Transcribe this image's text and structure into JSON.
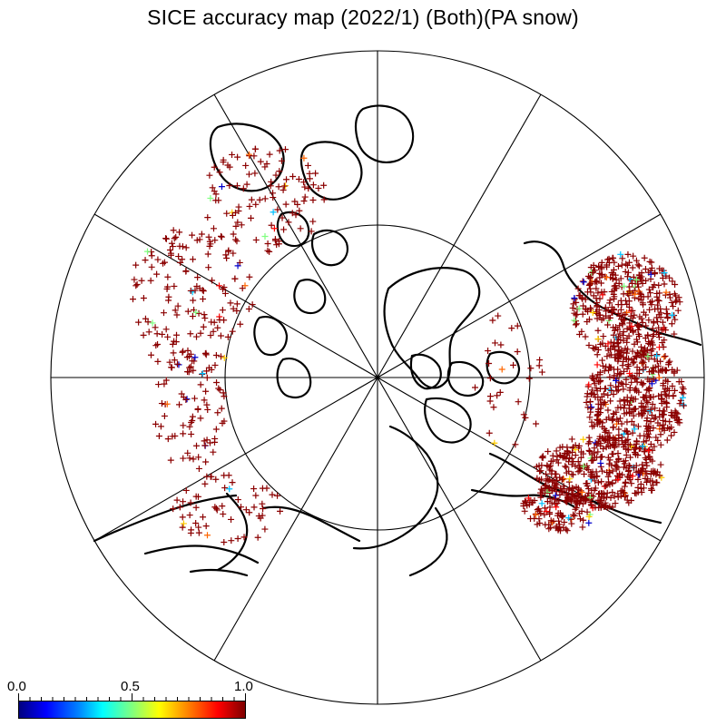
{
  "title": "SICE accuracy map (2022/1) (Both)(PA snow)",
  "colorbar": {
    "labels": [
      "0.0",
      "0.5",
      "1.0"
    ],
    "min": 0.0,
    "max": 1.0,
    "colors": [
      "#00007f",
      "#0000ff",
      "#00ffff",
      "#ffff00",
      "#ff0000",
      "#7f0000"
    ]
  },
  "legend_icons": {
    "marker": "plus-marker"
  },
  "map": {
    "projection": "north-polar-stereographic",
    "meridian_count": 12,
    "latitude_circle": true,
    "dominant_marker_color": "#8b0000"
  }
}
